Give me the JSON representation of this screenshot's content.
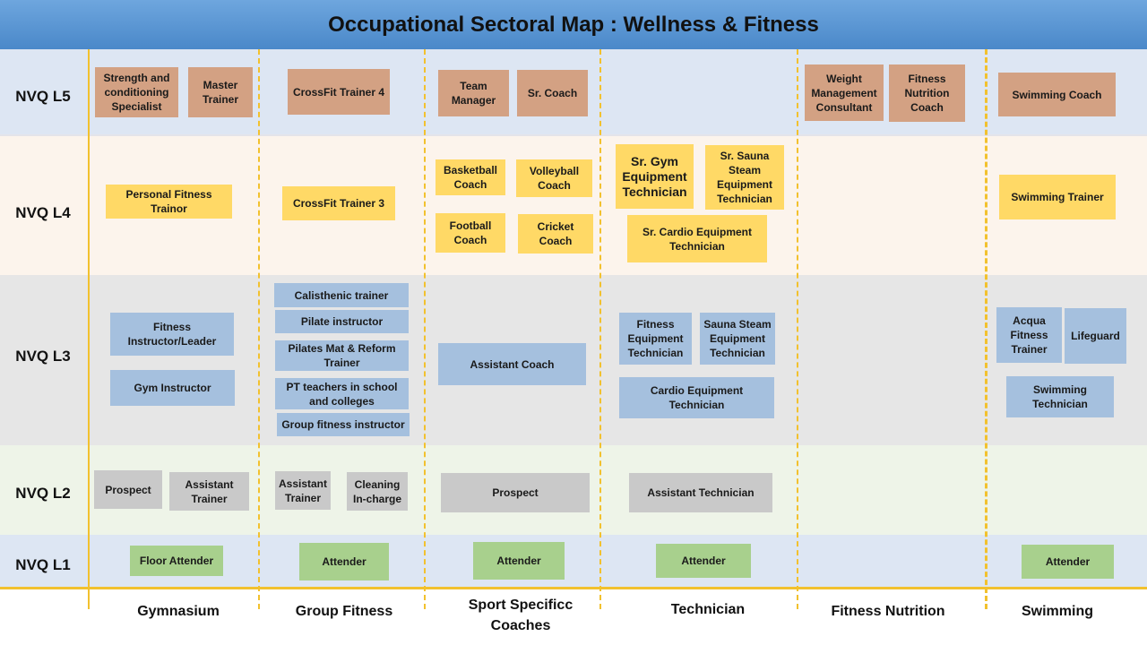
{
  "title": "Occupational Sectoral Map : Wellness & Fitness",
  "levels": [
    "NVQ L5",
    "NVQ L4",
    "NVQ L3",
    "NVQ L2",
    "NVQ L1"
  ],
  "columns": [
    "Gymnasium",
    "Group Fitness",
    "Sport Specificc Coaches",
    "Technician",
    "Fitness Nutrition",
    "Swimming"
  ],
  "colors": {
    "header": "#4a88c9",
    "divider": "#f2c12e",
    "l5": "#d3a183",
    "l4": "#ffd966",
    "l3": "#a5c0de",
    "l2": "#c9c9c9",
    "l1": "#a8d08d"
  },
  "roles": {
    "l5": [
      "Strength and conditioning Specialist",
      "Master Trainer",
      "CrossFit Trainer 4",
      "Team Manager",
      "Sr. Coach",
      "Weight Management Consultant",
      "Fitness Nutrition Coach",
      "Swimming Coach"
    ],
    "l4": [
      "Personal Fitness Trainor",
      "CrossFit Trainer 3",
      "Basketball Coach",
      "Volleyball Coach",
      "Football Coach",
      "Cricket Coach",
      "Sr. Gym Equipment Technician",
      "Sr. Sauna Steam Equipment Technician",
      "Sr. Cardio Equipment Technician",
      "Swimming Trainer"
    ],
    "l3": [
      "Fitness Instructor/Leader",
      "Gym Instructor",
      "Calisthenic trainer",
      "Pilate instructor",
      "Pilates Mat & Reform Trainer",
      "PT teachers in school and colleges",
      "Group fitness instructor",
      "Assistant Coach",
      "Fitness Equipment Technician",
      "Sauna Steam Equipment Technician",
      "Cardio Equipment Technician",
      "Acqua Fitness Trainer",
      "Lifeguard",
      "Swimming Technician"
    ],
    "l2": [
      "Prospect",
      "Assistant Trainer",
      "Assistant Trainer",
      "Cleaning In-charge",
      "Prospect",
      "Assistant Technician"
    ],
    "l1": [
      "Floor Attender",
      "Attender",
      "Attender",
      "Attender",
      "Attender"
    ]
  }
}
